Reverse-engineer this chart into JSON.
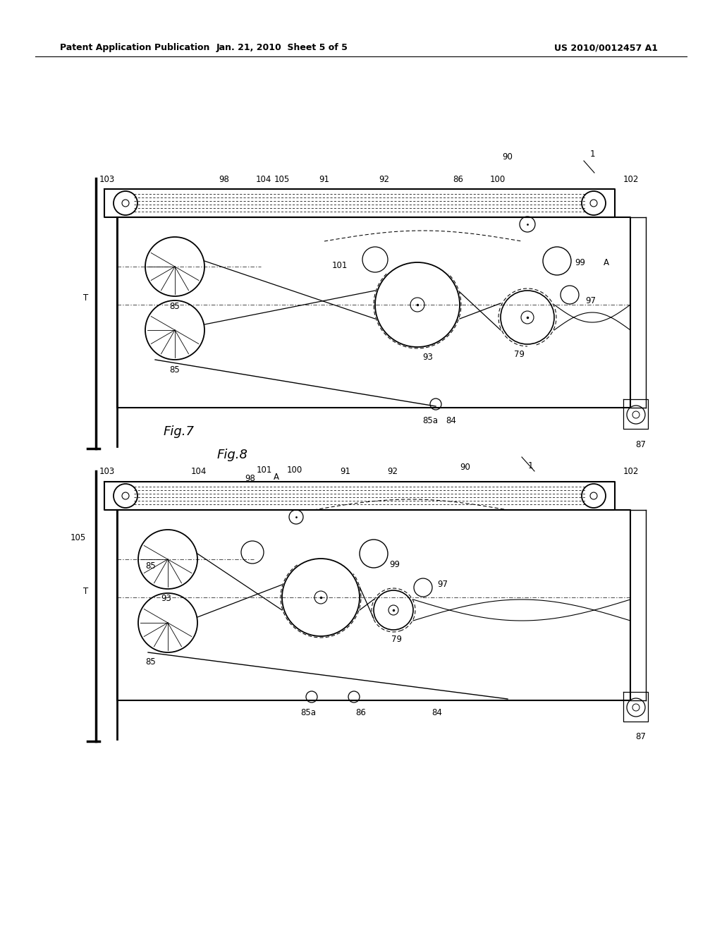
{
  "background_color": "#ffffff",
  "header_left": "Patent Application Publication",
  "header_mid": "Jan. 21, 2010  Sheet 5 of 5",
  "header_right": "US 2010/0012457 A1",
  "fig7_label": "Fig.7",
  "fig8_label": "Fig.8"
}
